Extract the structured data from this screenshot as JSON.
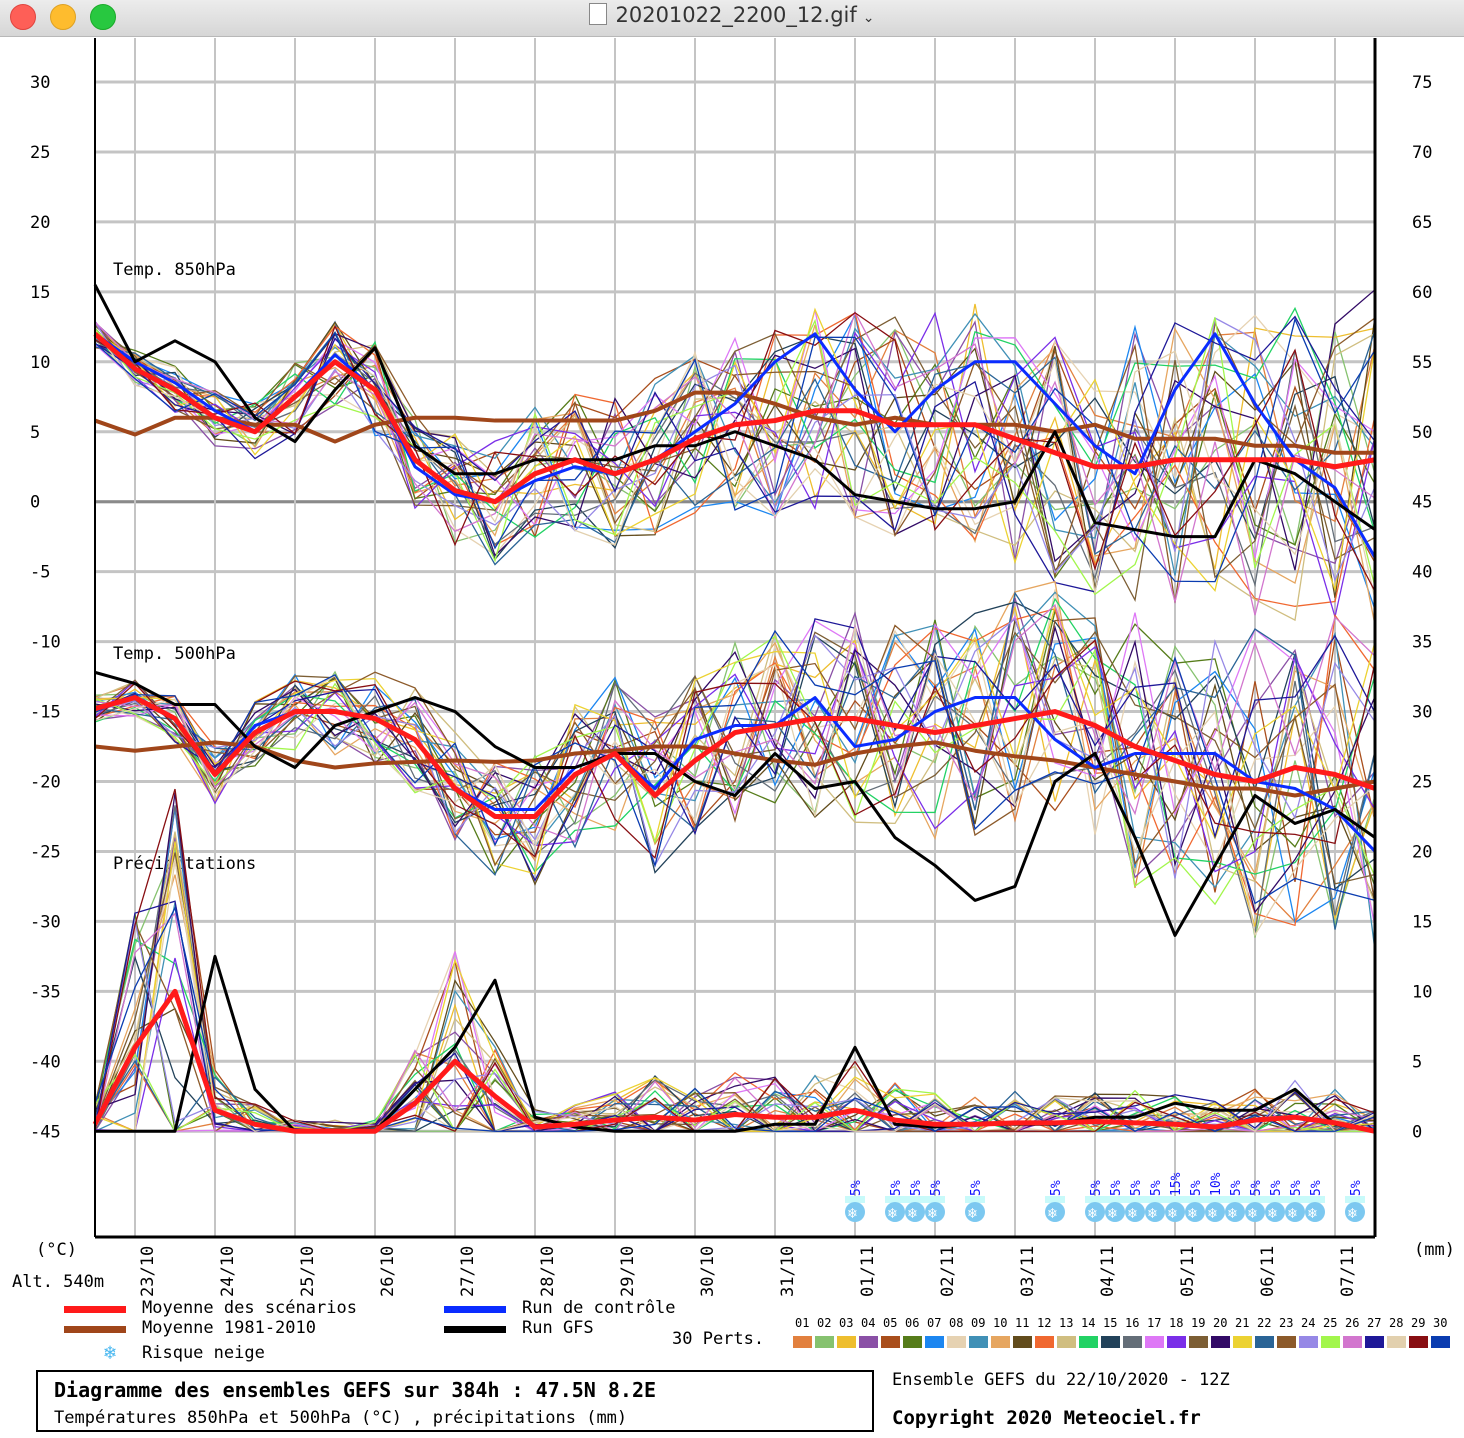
{
  "window": {
    "title": "20201022_2200_12.gif",
    "icon": "gif-document-icon"
  },
  "chart_data": {
    "type": "line",
    "title": "Diagramme des ensembles GEFS sur 384h : 47.5N 8.2E",
    "subtitle": "Températures 850hPa et 500hPa (°C) , précipitations (mm)",
    "run_info": "Ensemble GEFS du 22/10/2020 - 12Z",
    "copyright": "Copyright 2020 Meteociel.fr",
    "left_axis_unit": "(°C)",
    "right_axis_unit": "(mm)",
    "altitude": "Alt. 540m",
    "left_ticks": [
      "30",
      "25",
      "20",
      "15",
      "10",
      "5",
      "0",
      "-5",
      "-10",
      "-15",
      "-20",
      "-25",
      "-30",
      "-35",
      "-40",
      "-45"
    ],
    "right_ticks": [
      "75",
      "70",
      "65",
      "60",
      "55",
      "50",
      "45",
      "40",
      "35",
      "30",
      "25",
      "20",
      "15",
      "10",
      "5",
      "0"
    ],
    "ylim_left": [
      -45,
      30
    ],
    "ylim_right": [
      0,
      75
    ],
    "x_hours": 384,
    "x_step_hours": 12,
    "x_ticks": [
      {
        "label": "23/10",
        "hour": 12
      },
      {
        "label": "24/10",
        "hour": 36
      },
      {
        "label": "25/10",
        "hour": 60
      },
      {
        "label": "26/10",
        "hour": 84
      },
      {
        "label": "27/10",
        "hour": 108
      },
      {
        "label": "28/10",
        "hour": 132
      },
      {
        "label": "29/10",
        "hour": 156
      },
      {
        "label": "30/10",
        "hour": 180
      },
      {
        "label": "31/10",
        "hour": 204
      },
      {
        "label": "01/11",
        "hour": 228
      },
      {
        "label": "02/11",
        "hour": 252
      },
      {
        "label": "03/11",
        "hour": 276
      },
      {
        "label": "04/11",
        "hour": 300
      },
      {
        "label": "05/11",
        "hour": 324
      },
      {
        "label": "06/11",
        "hour": 348
      },
      {
        "label": "07/11",
        "hour": 372
      }
    ],
    "panel_labels": [
      "Temp. 850hPa",
      "Temp. 500hPa",
      "Précipitations"
    ],
    "series": [
      {
        "name": "Moyenne des scénarios",
        "panel": "850",
        "color": "#ff1a1a",
        "width": 5,
        "values": [
          12,
          9.5,
          8,
          6,
          5,
          7.5,
          10,
          8,
          3,
          0.8,
          0,
          2,
          3,
          2,
          3,
          4.5,
          5.5,
          5.8,
          6.5,
          6.5,
          5.5,
          5.5,
          5.5,
          4.5,
          3.5,
          2.5,
          2.5,
          3,
          3,
          3,
          3,
          2.5,
          3
        ]
      },
      {
        "name": "Moyenne 1981-2010",
        "panel": "850",
        "color": "#a0461a",
        "width": 4,
        "values": [
          5.8,
          4.8,
          6,
          6,
          5.5,
          5.5,
          4.3,
          5.5,
          6,
          6,
          5.8,
          5.8,
          5.8,
          5.8,
          6.5,
          7.8,
          7.8,
          7,
          6,
          5.5,
          6,
          5.5,
          5.5,
          5.5,
          5,
          5.5,
          4.5,
          4.5,
          4.5,
          4,
          4,
          3.5,
          3.5
        ]
      },
      {
        "name": "Run de contrôle",
        "panel": "850",
        "color": "#0a2cff",
        "width": 3,
        "values": [
          12,
          10,
          8.5,
          6.5,
          5,
          7.5,
          10.5,
          8,
          2.5,
          0.5,
          0,
          1.5,
          2.5,
          2,
          3,
          5,
          7,
          10,
          12,
          8,
          5,
          8,
          10,
          10,
          7,
          4,
          2,
          8,
          12,
          7,
          3,
          1,
          -4
        ]
      },
      {
        "name": "Run GFS",
        "panel": "850",
        "color": "#000000",
        "width": 3,
        "values": [
          15.5,
          10,
          11.5,
          10,
          6,
          4.3,
          8,
          11,
          4,
          2,
          2,
          3,
          3,
          3,
          4,
          4,
          5,
          4,
          3,
          0.5,
          0,
          -0.5,
          -0.5,
          0,
          5,
          -1.5,
          -2,
          -2.5,
          -2.5,
          3,
          2,
          0,
          -2
        ]
      },
      {
        "name": "Moyenne des scénarios",
        "panel": "500",
        "color": "#ff1a1a",
        "width": 5,
        "values": [
          -14.8,
          -14,
          -15.5,
          -19.5,
          -16.5,
          -15,
          -15,
          -15.5,
          -17,
          -20.5,
          -22.5,
          -22.5,
          -19.5,
          -18,
          -21,
          -18.5,
          -16.5,
          -16,
          -15.5,
          -15.5,
          -16,
          -16.5,
          -16,
          -15.5,
          -15,
          -16,
          -17.5,
          -18.5,
          -19.5,
          -20,
          -19,
          -19.5,
          -20.5
        ]
      },
      {
        "name": "Moyenne 1981-2010",
        "panel": "500",
        "color": "#a0461a",
        "width": 4,
        "values": [
          -17.5,
          -17.8,
          -17.5,
          -17.2,
          -17.5,
          -18.5,
          -19,
          -18.7,
          -18.6,
          -18.5,
          -18.6,
          -18.5,
          -18,
          -17.8,
          -17.5,
          -17.5,
          -18,
          -18.5,
          -18.8,
          -18,
          -17.5,
          -17.2,
          -17.8,
          -18.2,
          -18.5,
          -19,
          -19.5,
          -20,
          -20.5,
          -20.5,
          -21,
          -20.5,
          -20
        ]
      },
      {
        "name": "Run de contrôle",
        "panel": "500",
        "color": "#0a2cff",
        "width": 3,
        "values": [
          -14.8,
          -14,
          -15.5,
          -19.5,
          -16,
          -15,
          -15,
          -15.5,
          -17,
          -20.5,
          -22,
          -22,
          -19,
          -18,
          -20.5,
          -17,
          -16,
          -16,
          -14,
          -17.5,
          -17,
          -15,
          -14,
          -14,
          -17,
          -19,
          -18,
          -18,
          -18,
          -20,
          -20.5,
          -22,
          -25
        ]
      },
      {
        "name": "Run GFS",
        "panel": "500",
        "color": "#000000",
        "width": 3,
        "values": [
          -12.2,
          -13,
          -14.5,
          -14.5,
          -17.5,
          -19,
          -16,
          -15,
          -14,
          -15,
          -17.5,
          -19,
          -19,
          -18,
          -18,
          -20,
          -21,
          -18,
          -20.5,
          -20,
          -24,
          -26,
          -28.5,
          -27.5,
          -20,
          -18,
          -24,
          -31,
          -26,
          -21,
          -23,
          -22,
          -24
        ]
      },
      {
        "name": "Moyenne des scénarios",
        "panel": "precip",
        "color": "#ff1a1a",
        "width": 5,
        "values": [
          0.5,
          6,
          10,
          1.5,
          0.5,
          0,
          0,
          0,
          2,
          5,
          2.5,
          0.3,
          0.5,
          0.8,
          1,
          0.8,
          1.2,
          1,
          1,
          1.5,
          0.8,
          0.5,
          0.5,
          0.6,
          0.6,
          0.7,
          0.6,
          0.5,
          0.3,
          0.8,
          1,
          0.6,
          0
        ]
      },
      {
        "name": "Run GFS",
        "panel": "precip",
        "color": "#000000",
        "width": 3,
        "values": [
          0,
          0,
          0,
          12.5,
          3,
          0,
          0,
          0,
          3,
          6,
          10.8,
          1,
          0.3,
          0,
          0,
          0,
          0,
          0.5,
          0.5,
          6,
          0.5,
          0.3,
          0.5,
          0.5,
          0.5,
          1,
          1,
          2,
          1.5,
          1.5,
          3,
          0.5,
          0
        ]
      }
    ],
    "perturbations": {
      "label": "30 Perts.",
      "members": [
        "01",
        "02",
        "03",
        "04",
        "05",
        "06",
        "07",
        "08",
        "09",
        "10",
        "11",
        "12",
        "13",
        "14",
        "15",
        "16",
        "17",
        "18",
        "19",
        "20",
        "21",
        "22",
        "23",
        "24",
        "25",
        "26",
        "27",
        "28",
        "29",
        "30"
      ],
      "colors": [
        "#e2803e",
        "#86c26f",
        "#eebe2e",
        "#8a50a6",
        "#a94e1c",
        "#567c1a",
        "#1c86f0",
        "#e6d2b2",
        "#4090b6",
        "#e6a660",
        "#624c1c",
        "#f06830",
        "#d0be80",
        "#22d264",
        "#22425a",
        "#646e78",
        "#de78f6",
        "#7a2ee8",
        "#7c5e34",
        "#320a66",
        "#ecd232",
        "#2a6496",
        "#8c5a2a",
        "#9688e6",
        "#a2f64c",
        "#d276ce",
        "#1e1898",
        "#e2d0ae",
        "#880e12",
        "#0a3cb0"
      ]
    },
    "snow_risk": {
      "label": "Risque neige",
      "markers": [
        {
          "hour": 228,
          "label": "5%"
        },
        {
          "hour": 240,
          "label": "5%"
        },
        {
          "hour": 246,
          "label": "5%"
        },
        {
          "hour": 252,
          "label": "5%"
        },
        {
          "hour": 264,
          "label": "5%"
        },
        {
          "hour": 288,
          "label": "5%"
        },
        {
          "hour": 300,
          "label": "5%"
        },
        {
          "hour": 306,
          "label": "5%"
        },
        {
          "hour": 312,
          "label": "5%"
        },
        {
          "hour": 318,
          "label": "5%"
        },
        {
          "hour": 324,
          "label": "15%"
        },
        {
          "hour": 330,
          "label": "5%"
        },
        {
          "hour": 336,
          "label": "10%"
        },
        {
          "hour": 342,
          "label": "5%"
        },
        {
          "hour": 348,
          "label": "5%"
        },
        {
          "hour": 354,
          "label": "5%"
        },
        {
          "hour": 360,
          "label": "5%"
        },
        {
          "hour": 366,
          "label": "5%"
        },
        {
          "hour": 378,
          "label": "5%"
        }
      ]
    },
    "legend": [
      {
        "label": "Moyenne des scénarios",
        "color": "#ff1a1a"
      },
      {
        "label": "Moyenne 1981-2010",
        "color": "#a0461a"
      },
      {
        "label": "Run de contrôle",
        "color": "#0a2cff"
      },
      {
        "label": "Run GFS",
        "color": "#000000"
      }
    ]
  }
}
